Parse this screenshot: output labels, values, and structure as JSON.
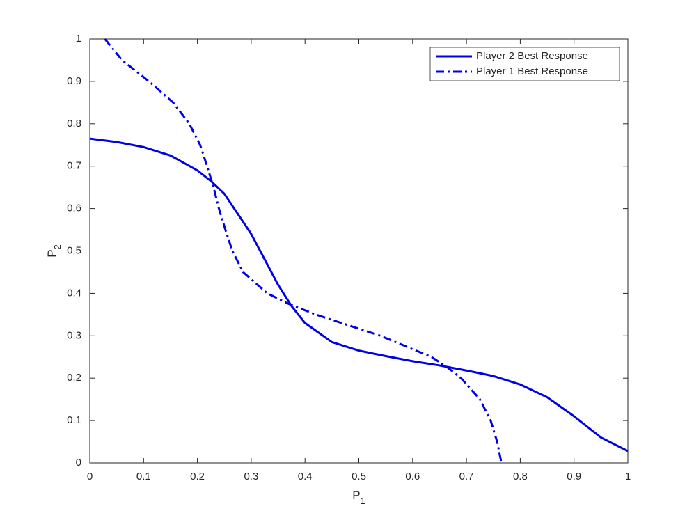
{
  "chart_data": {
    "type": "line",
    "xlabel": {
      "base": "P",
      "subscript": "1"
    },
    "ylabel": {
      "base": "P",
      "subscript": "2"
    },
    "xlim": [
      0,
      1
    ],
    "ylim": [
      0,
      1
    ],
    "xticks": [
      0,
      0.1,
      0.2,
      0.3,
      0.4,
      0.5,
      0.6,
      0.7,
      0.8,
      0.9,
      1
    ],
    "yticks": [
      0,
      0.1,
      0.2,
      0.3,
      0.4,
      0.5,
      0.6,
      0.7,
      0.8,
      0.9,
      1
    ],
    "legend": "top-right",
    "series": [
      {
        "name": "Player 2 Best Response",
        "color": "#0000e6",
        "style": "solid",
        "x": [
          0,
          0.05,
          0.1,
          0.15,
          0.2,
          0.225,
          0.25,
          0.3,
          0.35,
          0.375,
          0.4,
          0.45,
          0.5,
          0.55,
          0.6,
          0.65,
          0.7,
          0.75,
          0.8,
          0.85,
          0.9,
          0.95,
          1
        ],
        "values": [
          0.765,
          0.757,
          0.745,
          0.725,
          0.69,
          0.665,
          0.635,
          0.54,
          0.42,
          0.37,
          0.33,
          0.285,
          0.265,
          0.252,
          0.24,
          0.23,
          0.218,
          0.205,
          0.185,
          0.155,
          0.11,
          0.06,
          0.028
        ]
      },
      {
        "name": "Player 1 Best Response",
        "color": "#0000e6",
        "style": "dashdot",
        "x": [
          0.028,
          0.06,
          0.11,
          0.155,
          0.185,
          0.205,
          0.218,
          0.23,
          0.24,
          0.252,
          0.265,
          0.285,
          0.33,
          0.37,
          0.42,
          0.54,
          0.635,
          0.665,
          0.69,
          0.725,
          0.745,
          0.757,
          0.765
        ],
        "values": [
          1,
          0.95,
          0.9,
          0.85,
          0.8,
          0.75,
          0.7,
          0.65,
          0.6,
          0.55,
          0.5,
          0.45,
          0.4,
          0.375,
          0.35,
          0.3,
          0.25,
          0.225,
          0.2,
          0.15,
          0.1,
          0.05,
          0
        ]
      }
    ]
  }
}
